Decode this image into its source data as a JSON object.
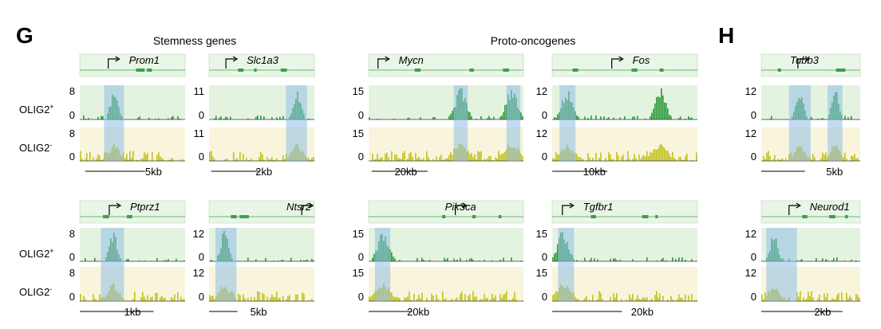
{
  "panel_letters": [
    "G",
    "H"
  ],
  "group_titles": [
    "Stemness genes",
    "Proto-oncogenes"
  ],
  "colors": {
    "green_bg": "#e4f3e0",
    "green_bars": "#2e9a3a",
    "yellow_bg": "#f8f5dc",
    "yellow_bars": "#c3c21e",
    "highlight": "#8fbde6",
    "gene_box": "#e9f5e6",
    "gene_line": "#3aa04a"
  },
  "row_labels": [
    {
      "text": "OLIG2",
      "sup": "+"
    },
    {
      "text": "OLIG2",
      "sup": "-"
    },
    {
      "text": "OLIG2",
      "sup": "+"
    },
    {
      "text": "OLIG2",
      "sup": "-"
    }
  ],
  "chart_data": [
    {
      "type": "bar",
      "gene": "Prom1",
      "group": "Stemness genes",
      "yticks": [
        8,
        0
      ],
      "scale": "5kb",
      "tss": "right",
      "highlighted_peak": "promoter region",
      "series": [
        {
          "name": "OLIG2+",
          "peak": 8
        },
        {
          "name": "OLIG2-",
          "peak": 8
        }
      ]
    },
    {
      "type": "bar",
      "gene": "Slc1a3",
      "group": "Stemness genes",
      "yticks": [
        11,
        0
      ],
      "scale": "2kb",
      "tss": "right",
      "highlighted_peak": "upstream region",
      "series": [
        {
          "name": "OLIG2+",
          "peak": 11
        },
        {
          "name": "OLIG2-",
          "peak": 11
        }
      ]
    },
    {
      "type": "bar",
      "gene": "Mycn",
      "group": "Proto-oncogenes",
      "yticks": [
        15,
        0
      ],
      "scale": "20kb",
      "tss": "right",
      "highlighted_peak": "two distal regions",
      "series": [
        {
          "name": "OLIG2+",
          "peak": 15
        },
        {
          "name": "OLIG2-",
          "peak": 15
        }
      ]
    },
    {
      "type": "bar",
      "gene": "Fos",
      "group": "Proto-oncogenes",
      "yticks": [
        12,
        0
      ],
      "scale": "10kb",
      "tss": "right",
      "highlighted_peak": "upstream region",
      "series": [
        {
          "name": "OLIG2+",
          "peak": 12
        },
        {
          "name": "OLIG2-",
          "peak": 12
        }
      ]
    },
    {
      "type": "bar",
      "gene": "Tubb3",
      "panel": "H",
      "yticks": [
        12,
        0
      ],
      "scale": "5kb",
      "tss": "right",
      "highlighted_peak": "two regions",
      "series": [
        {
          "name": "OLIG2+",
          "peak": 12
        },
        {
          "name": "OLIG2-",
          "peak": 12
        }
      ]
    },
    {
      "type": "bar",
      "gene": "Ptprz1",
      "group": "Stemness genes",
      "yticks": [
        8,
        0
      ],
      "scale": "1kb",
      "tss": "right",
      "highlighted_peak": "promoter region",
      "series": [
        {
          "name": "OLIG2+",
          "peak": 8
        },
        {
          "name": "OLIG2-",
          "peak": 8
        }
      ]
    },
    {
      "type": "bar",
      "gene": "Ntsr2",
      "group": "Stemness genes",
      "yticks": [
        12,
        0
      ],
      "scale": "5kb",
      "tss": "right",
      "highlighted_peak": "upstream region",
      "series": [
        {
          "name": "OLIG2+",
          "peak": 12
        },
        {
          "name": "OLIG2-",
          "peak": 12
        }
      ]
    },
    {
      "type": "bar",
      "gene": "Pik3ca",
      "group": "Proto-oncogenes",
      "yticks": [
        15,
        0
      ],
      "scale": "20kb",
      "tss": "right",
      "highlighted_peak": "upstream region",
      "series": [
        {
          "name": "OLIG2+",
          "peak": 15
        },
        {
          "name": "OLIG2-",
          "peak": 15
        }
      ]
    },
    {
      "type": "bar",
      "gene": "Tgfbr1",
      "group": "Proto-oncogenes",
      "yticks": [
        15,
        0
      ],
      "scale": "20kb",
      "tss": "right",
      "highlighted_peak": "upstream region",
      "series": [
        {
          "name": "OLIG2+",
          "peak": 15
        },
        {
          "name": "OLIG2-",
          "peak": 15
        }
      ]
    },
    {
      "type": "bar",
      "gene": "Neurod1",
      "panel": "H",
      "yticks": [
        12,
        0
      ],
      "scale": "2kb",
      "tss": "right",
      "highlighted_peak": "upstream region",
      "series": [
        {
          "name": "OLIG2+",
          "peak": 12
        },
        {
          "name": "OLIG2-",
          "peak": 12
        }
      ]
    }
  ]
}
